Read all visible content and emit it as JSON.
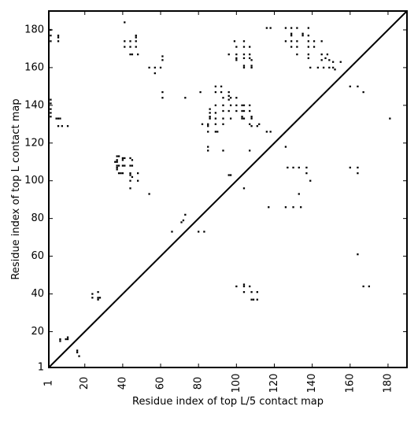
{
  "chart_data": {
    "type": "scatter",
    "title": "",
    "xlabel": "Residue index of top L/5 contact map",
    "ylabel": "Residue index of top L contact map",
    "xlim": [
      1,
      190
    ],
    "ylim": [
      1,
      190
    ],
    "xticks": [
      1,
      20,
      40,
      60,
      80,
      100,
      120,
      140,
      160,
      180
    ],
    "yticks": [
      1,
      20,
      40,
      60,
      80,
      100,
      120,
      140,
      160,
      180
    ],
    "xtick_labels": [
      "1",
      "20",
      "40",
      "60",
      "80",
      "100",
      "120",
      "140",
      "160",
      "180"
    ],
    "ytick_labels": [
      "1",
      "20",
      "40",
      "60",
      "80",
      "100",
      "120",
      "140",
      "160",
      "180"
    ],
    "grid": false,
    "marker_color": "#000000",
    "diagonal_line": true,
    "series": [
      {
        "points": [
          [
            16,
            9
          ],
          [
            16,
            10
          ],
          [
            17,
            7
          ],
          [
            7,
            15
          ],
          [
            7,
            16
          ],
          [
            10,
            16
          ],
          [
            11,
            16
          ],
          [
            11,
            17
          ],
          [
            38,
            104
          ],
          [
            39,
            104
          ],
          [
            40,
            104
          ],
          [
            44,
            104
          ],
          [
            48,
            104
          ],
          [
            44,
            103
          ],
          [
            45,
            102
          ],
          [
            37,
            106
          ],
          [
            37,
            107
          ],
          [
            37,
            108
          ],
          [
            38,
            108
          ],
          [
            40,
            108
          ],
          [
            41,
            108
          ],
          [
            44,
            108
          ],
          [
            45,
            108
          ],
          [
            36,
            110
          ],
          [
            37,
            110
          ],
          [
            37,
            111
          ],
          [
            40,
            111
          ],
          [
            40,
            112
          ],
          [
            41,
            112
          ],
          [
            44,
            112
          ],
          [
            45,
            111
          ],
          [
            37,
            113
          ],
          [
            38,
            113
          ],
          [
            44,
            100
          ],
          [
            48,
            100
          ],
          [
            44,
            96
          ],
          [
            54,
            93
          ],
          [
            66,
            73
          ],
          [
            80,
            73
          ],
          [
            83,
            73
          ],
          [
            71,
            78
          ],
          [
            72,
            79
          ],
          [
            73,
            82
          ],
          [
            104,
            96
          ],
          [
            96,
            103
          ],
          [
            97,
            103
          ],
          [
            126,
            118
          ],
          [
            139,
            100
          ],
          [
            133,
            93
          ],
          [
            130,
            86
          ],
          [
            134,
            86
          ],
          [
            126,
            86
          ],
          [
            117,
            86
          ],
          [
            127,
            107
          ],
          [
            130,
            107
          ],
          [
            133,
            107
          ],
          [
            137,
            107
          ],
          [
            137,
            104
          ],
          [
            160,
            107
          ],
          [
            164,
            107
          ],
          [
            164,
            104
          ],
          [
            164,
            61
          ],
          [
            167,
            44
          ],
          [
            170,
            44
          ],
          [
            100,
            44
          ],
          [
            104,
            44
          ],
          [
            104,
            45
          ],
          [
            107,
            44
          ],
          [
            108,
            41
          ],
          [
            111,
            41
          ],
          [
            104,
            41
          ],
          [
            108,
            37
          ],
          [
            109,
            37
          ],
          [
            111,
            37
          ],
          [
            24,
            38
          ],
          [
            24,
            40
          ],
          [
            27,
            37
          ],
          [
            27,
            38
          ],
          [
            28,
            38
          ],
          [
            27,
            41
          ],
          [
            73,
            144
          ],
          [
            61,
            144
          ],
          [
            61,
            147
          ],
          [
            181,
            133
          ],
          [
            2,
            180
          ],
          [
            2,
            177
          ],
          [
            2,
            174
          ],
          [
            6,
            177
          ],
          [
            6,
            176
          ],
          [
            6,
            174
          ],
          [
            2,
            143
          ],
          [
            2,
            141
          ],
          [
            2,
            138
          ],
          [
            2,
            136
          ],
          [
            2,
            134
          ],
          [
            5,
            133
          ],
          [
            6,
            133
          ],
          [
            7,
            133
          ],
          [
            6,
            129
          ],
          [
            8,
            129
          ],
          [
            11,
            129
          ],
          [
            41,
            184
          ],
          [
            41,
            174
          ],
          [
            41,
            171
          ],
          [
            44,
            171
          ],
          [
            47,
            171
          ],
          [
            47,
            174
          ],
          [
            47,
            176
          ],
          [
            47,
            177
          ],
          [
            44,
            174
          ],
          [
            44,
            167
          ],
          [
            45,
            167
          ],
          [
            48,
            167
          ],
          [
            54,
            160
          ],
          [
            57,
            160
          ],
          [
            60,
            160
          ],
          [
            57,
            157
          ],
          [
            61,
            164
          ],
          [
            61,
            166
          ],
          [
            99,
            174
          ],
          [
            100,
            171
          ],
          [
            100,
            167
          ],
          [
            100,
            165
          ],
          [
            100,
            164
          ],
          [
            104,
            174
          ],
          [
            104,
            171
          ],
          [
            104,
            167
          ],
          [
            104,
            165
          ],
          [
            104,
            161
          ],
          [
            104,
            160
          ],
          [
            107,
            171
          ],
          [
            107,
            167
          ],
          [
            107,
            165
          ],
          [
            108,
            164
          ],
          [
            108,
            161
          ],
          [
            108,
            160
          ],
          [
            96,
            167
          ],
          [
            116,
            181
          ],
          [
            118,
            181
          ],
          [
            126,
            181
          ],
          [
            126,
            174
          ],
          [
            129,
            181
          ],
          [
            129,
            178
          ],
          [
            129,
            177
          ],
          [
            129,
            174
          ],
          [
            129,
            171
          ],
          [
            132,
            181
          ],
          [
            132,
            174
          ],
          [
            132,
            171
          ],
          [
            132,
            167
          ],
          [
            135,
            178
          ],
          [
            135,
            177
          ],
          [
            138,
            181
          ],
          [
            138,
            177
          ],
          [
            138,
            174
          ],
          [
            138,
            171
          ],
          [
            138,
            167
          ],
          [
            138,
            165
          ],
          [
            139,
            160
          ],
          [
            141,
            174
          ],
          [
            141,
            171
          ],
          [
            143,
            160
          ],
          [
            145,
            174
          ],
          [
            145,
            167
          ],
          [
            145,
            164
          ],
          [
            146,
            160
          ],
          [
            147,
            165
          ],
          [
            148,
            167
          ],
          [
            149,
            164
          ],
          [
            149,
            160
          ],
          [
            151,
            160
          ],
          [
            151,
            163
          ],
          [
            152,
            159
          ],
          [
            155,
            163
          ],
          [
            160,
            150
          ],
          [
            164,
            150
          ],
          [
            167,
            147
          ],
          [
            81,
            147
          ],
          [
            82,
            130
          ],
          [
            85,
            130
          ],
          [
            85,
            129
          ],
          [
            85,
            126
          ],
          [
            85,
            118
          ],
          [
            85,
            116
          ],
          [
            86,
            138
          ],
          [
            86,
            136
          ],
          [
            86,
            134
          ],
          [
            86,
            133
          ],
          [
            89,
            150
          ],
          [
            89,
            147
          ],
          [
            89,
            140
          ],
          [
            89,
            136
          ],
          [
            89,
            133
          ],
          [
            89,
            130
          ],
          [
            89,
            126
          ],
          [
            90,
            126
          ],
          [
            92,
            150
          ],
          [
            92,
            147
          ],
          [
            93,
            144
          ],
          [
            93,
            140
          ],
          [
            93,
            137
          ],
          [
            93,
            133
          ],
          [
            93,
            130
          ],
          [
            93,
            116
          ],
          [
            96,
            147
          ],
          [
            96,
            145
          ],
          [
            97,
            144
          ],
          [
            96,
            143
          ],
          [
            97,
            140
          ],
          [
            96,
            137
          ],
          [
            97,
            133
          ],
          [
            100,
            144
          ],
          [
            100,
            140
          ],
          [
            100,
            137
          ],
          [
            103,
            140
          ],
          [
            103,
            137
          ],
          [
            103,
            134
          ],
          [
            103,
            133
          ],
          [
            104,
            140
          ],
          [
            104,
            137
          ],
          [
            104,
            133
          ],
          [
            107,
            140
          ],
          [
            107,
            137
          ],
          [
            108,
            134
          ],
          [
            108,
            133
          ],
          [
            107,
            130
          ],
          [
            108,
            129
          ],
          [
            111,
            129
          ],
          [
            112,
            130
          ],
          [
            116,
            126
          ],
          [
            118,
            126
          ],
          [
            107,
            116
          ]
        ]
      }
    ]
  }
}
